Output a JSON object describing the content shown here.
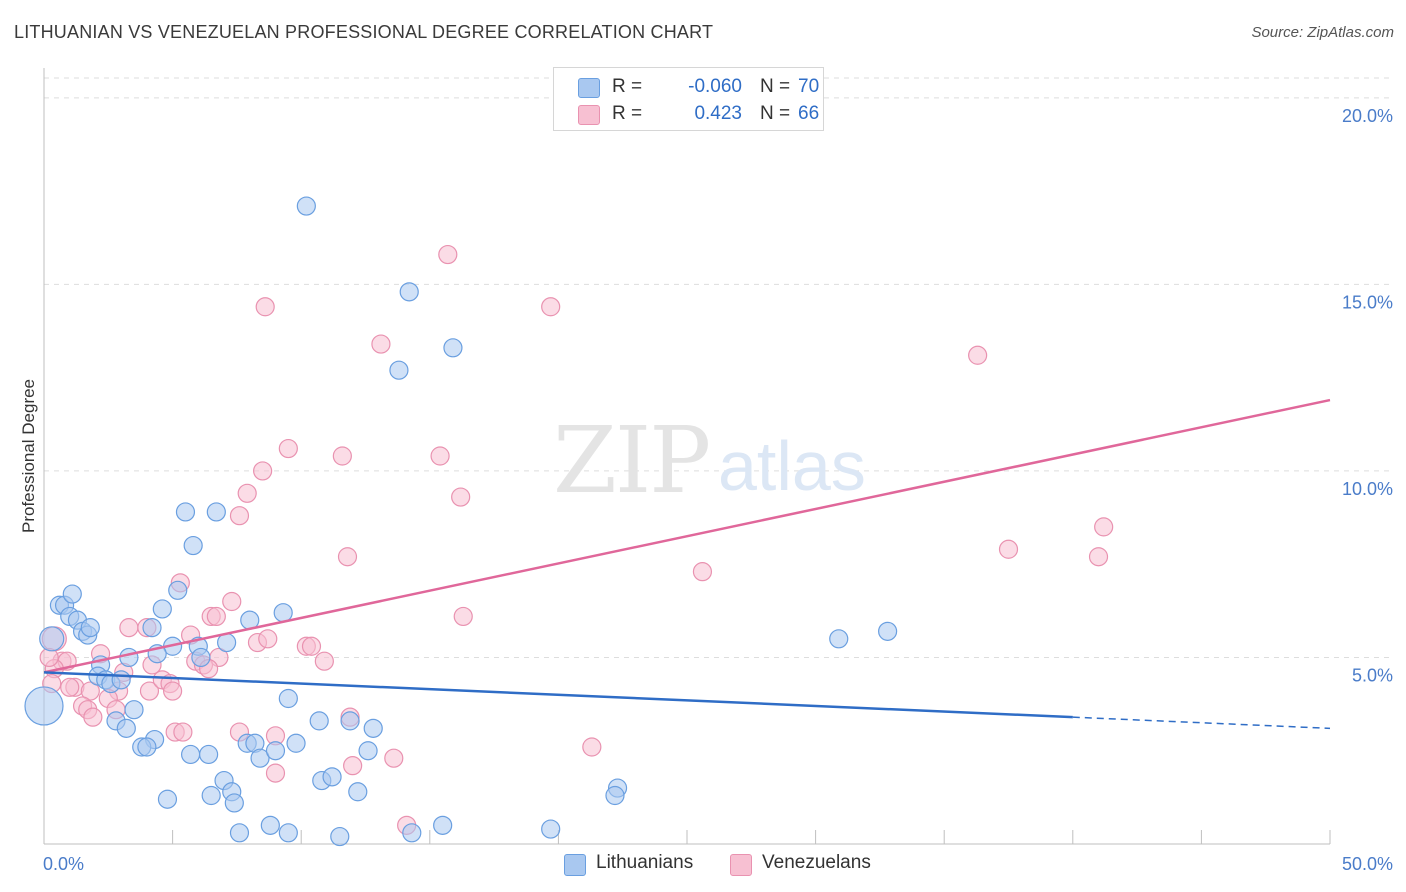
{
  "header": {
    "title": "LITHUANIAN VS VENEZUELAN PROFESSIONAL DEGREE CORRELATION CHART",
    "source": "Source: ZipAtlas.com"
  },
  "watermark": {
    "zip": "ZIP",
    "atlas": "atlas"
  },
  "legend": {
    "rows": [
      {
        "r_label": "R =",
        "r_value": "-0.060",
        "n_label": "N =",
        "n_value": "70"
      },
      {
        "r_label": "R =",
        "r_value": "0.423",
        "n_label": "N =",
        "n_value": "66"
      }
    ]
  },
  "bottom_legend": {
    "lithuanians": "Lithuanians",
    "venezuelans": "Venezuelans"
  },
  "colors": {
    "lithuanians_fill": "#a9c8f0",
    "lithuanians_stroke": "#6a9fe0",
    "lithuanians_line": "#2f6dc6",
    "venezuelans_fill": "#f7c0d2",
    "venezuelans_stroke": "#e992b0",
    "venezuelans_line": "#e0679a",
    "tick_label": "#4a7cc9",
    "grid": "#dddddd"
  },
  "chart_data": {
    "type": "scatter",
    "title": "LITHUANIAN VS VENEZUELAN PROFESSIONAL DEGREE CORRELATION CHART",
    "xlabel": "",
    "ylabel": "Professional Degree",
    "xlim": [
      0,
      50
    ],
    "ylim": [
      0,
      20.8
    ],
    "x_tick_labels": [
      "0.0%",
      "50.0%"
    ],
    "y_ticks": [
      5,
      10,
      15,
      20
    ],
    "y_tick_labels": [
      "5.0%",
      "10.0%",
      "15.0%",
      "20.0%"
    ],
    "grid": true,
    "legend_position": "top-center",
    "series": [
      {
        "name": "Lithuanians",
        "r": -0.06,
        "n": 70,
        "trend": {
          "x0": 0,
          "y0": 4.6,
          "x1": 40,
          "y1": 3.4,
          "dashed_to_x": 50,
          "dashed_to_y": 3.1
        },
        "points": [
          [
            10.2,
            17.1
          ],
          [
            14.2,
            14.8
          ],
          [
            15.9,
            13.3
          ],
          [
            13.8,
            12.7
          ],
          [
            5.5,
            8.9
          ],
          [
            6.7,
            8.9
          ],
          [
            5.8,
            8.0
          ],
          [
            5.2,
            6.8
          ],
          [
            0.6,
            6.4
          ],
          [
            0.8,
            6.4
          ],
          [
            1.0,
            6.1
          ],
          [
            1.1,
            6.7
          ],
          [
            1.3,
            6.0
          ],
          [
            1.5,
            5.7
          ],
          [
            1.7,
            5.6
          ],
          [
            1.8,
            5.8
          ],
          [
            0.3,
            5.5
          ],
          [
            4.2,
            5.8
          ],
          [
            4.6,
            6.3
          ],
          [
            8.0,
            6.0
          ],
          [
            9.3,
            6.2
          ],
          [
            5.0,
            5.3
          ],
          [
            6.0,
            5.3
          ],
          [
            7.1,
            5.4
          ],
          [
            4.4,
            5.1
          ],
          [
            6.1,
            5.0
          ],
          [
            3.3,
            5.0
          ],
          [
            2.2,
            4.8
          ],
          [
            2.1,
            4.5
          ],
          [
            2.4,
            4.4
          ],
          [
            2.6,
            4.3
          ],
          [
            3.0,
            4.4
          ],
          [
            0.0,
            3.7
          ],
          [
            3.5,
            3.6
          ],
          [
            9.5,
            3.9
          ],
          [
            2.8,
            3.3
          ],
          [
            3.2,
            3.1
          ],
          [
            4.3,
            2.8
          ],
          [
            3.8,
            2.6
          ],
          [
            4.0,
            2.6
          ],
          [
            5.7,
            2.4
          ],
          [
            6.4,
            2.4
          ],
          [
            7.9,
            2.7
          ],
          [
            8.2,
            2.7
          ],
          [
            8.4,
            2.3
          ],
          [
            9.0,
            2.5
          ],
          [
            9.8,
            2.7
          ],
          [
            10.7,
            3.3
          ],
          [
            11.9,
            3.3
          ],
          [
            12.6,
            2.5
          ],
          [
            12.8,
            3.1
          ],
          [
            7.0,
            1.7
          ],
          [
            7.3,
            1.4
          ],
          [
            6.5,
            1.3
          ],
          [
            7.4,
            1.1
          ],
          [
            4.8,
            1.2
          ],
          [
            10.8,
            1.7
          ],
          [
            11.2,
            1.8
          ],
          [
            12.2,
            1.4
          ],
          [
            7.6,
            0.3
          ],
          [
            8.8,
            0.5
          ],
          [
            9.5,
            0.3
          ],
          [
            11.5,
            0.2
          ],
          [
            14.3,
            0.3
          ],
          [
            15.5,
            0.5
          ],
          [
            19.7,
            0.4
          ],
          [
            22.3,
            1.5
          ],
          [
            22.2,
            1.3
          ],
          [
            30.9,
            5.5
          ],
          [
            32.8,
            5.7
          ]
        ]
      },
      {
        "name": "Venezuelans",
        "r": 0.423,
        "n": 66,
        "trend": {
          "x0": 0,
          "y0": 4.6,
          "x1": 50,
          "y1": 11.9
        },
        "points": [
          [
            15.7,
            15.8
          ],
          [
            8.6,
            14.4
          ],
          [
            19.7,
            14.4
          ],
          [
            13.1,
            13.4
          ],
          [
            36.3,
            13.1
          ],
          [
            9.5,
            10.6
          ],
          [
            11.6,
            10.4
          ],
          [
            15.4,
            10.4
          ],
          [
            8.5,
            10.0
          ],
          [
            16.2,
            9.3
          ],
          [
            7.9,
            9.4
          ],
          [
            7.6,
            8.8
          ],
          [
            41.2,
            8.5
          ],
          [
            11.8,
            7.7
          ],
          [
            37.5,
            7.9
          ],
          [
            41.0,
            7.7
          ],
          [
            25.6,
            7.3
          ],
          [
            5.3,
            7.0
          ],
          [
            16.3,
            6.1
          ],
          [
            7.3,
            6.5
          ],
          [
            6.5,
            6.1
          ],
          [
            6.7,
            6.1
          ],
          [
            3.3,
            5.8
          ],
          [
            4.0,
            5.8
          ],
          [
            5.7,
            5.6
          ],
          [
            8.3,
            5.4
          ],
          [
            8.7,
            5.5
          ],
          [
            10.2,
            5.3
          ],
          [
            10.4,
            5.3
          ],
          [
            2.2,
            5.1
          ],
          [
            0.7,
            4.9
          ],
          [
            0.9,
            4.9
          ],
          [
            6.8,
            5.0
          ],
          [
            10.9,
            4.9
          ],
          [
            4.2,
            4.8
          ],
          [
            5.9,
            4.9
          ],
          [
            6.2,
            4.8
          ],
          [
            6.4,
            4.7
          ],
          [
            3.1,
            4.6
          ],
          [
            0.4,
            4.7
          ],
          [
            0.3,
            4.3
          ],
          [
            1.2,
            4.2
          ],
          [
            1.8,
            4.1
          ],
          [
            2.9,
            4.1
          ],
          [
            4.1,
            4.1
          ],
          [
            4.6,
            4.4
          ],
          [
            4.9,
            4.3
          ],
          [
            5.0,
            4.1
          ],
          [
            2.5,
            3.9
          ],
          [
            1.5,
            3.7
          ],
          [
            1.7,
            3.6
          ],
          [
            1.9,
            3.4
          ],
          [
            2.8,
            3.6
          ],
          [
            11.9,
            3.4
          ],
          [
            5.1,
            3.0
          ],
          [
            5.4,
            3.0
          ],
          [
            7.6,
            3.0
          ],
          [
            9.0,
            2.9
          ],
          [
            13.6,
            2.3
          ],
          [
            21.3,
            2.6
          ],
          [
            9.0,
            1.9
          ],
          [
            12.0,
            2.1
          ],
          [
            0.4,
            5.5
          ],
          [
            0.2,
            5.0
          ],
          [
            1.0,
            4.2
          ],
          [
            14.1,
            0.5
          ]
        ]
      }
    ]
  }
}
